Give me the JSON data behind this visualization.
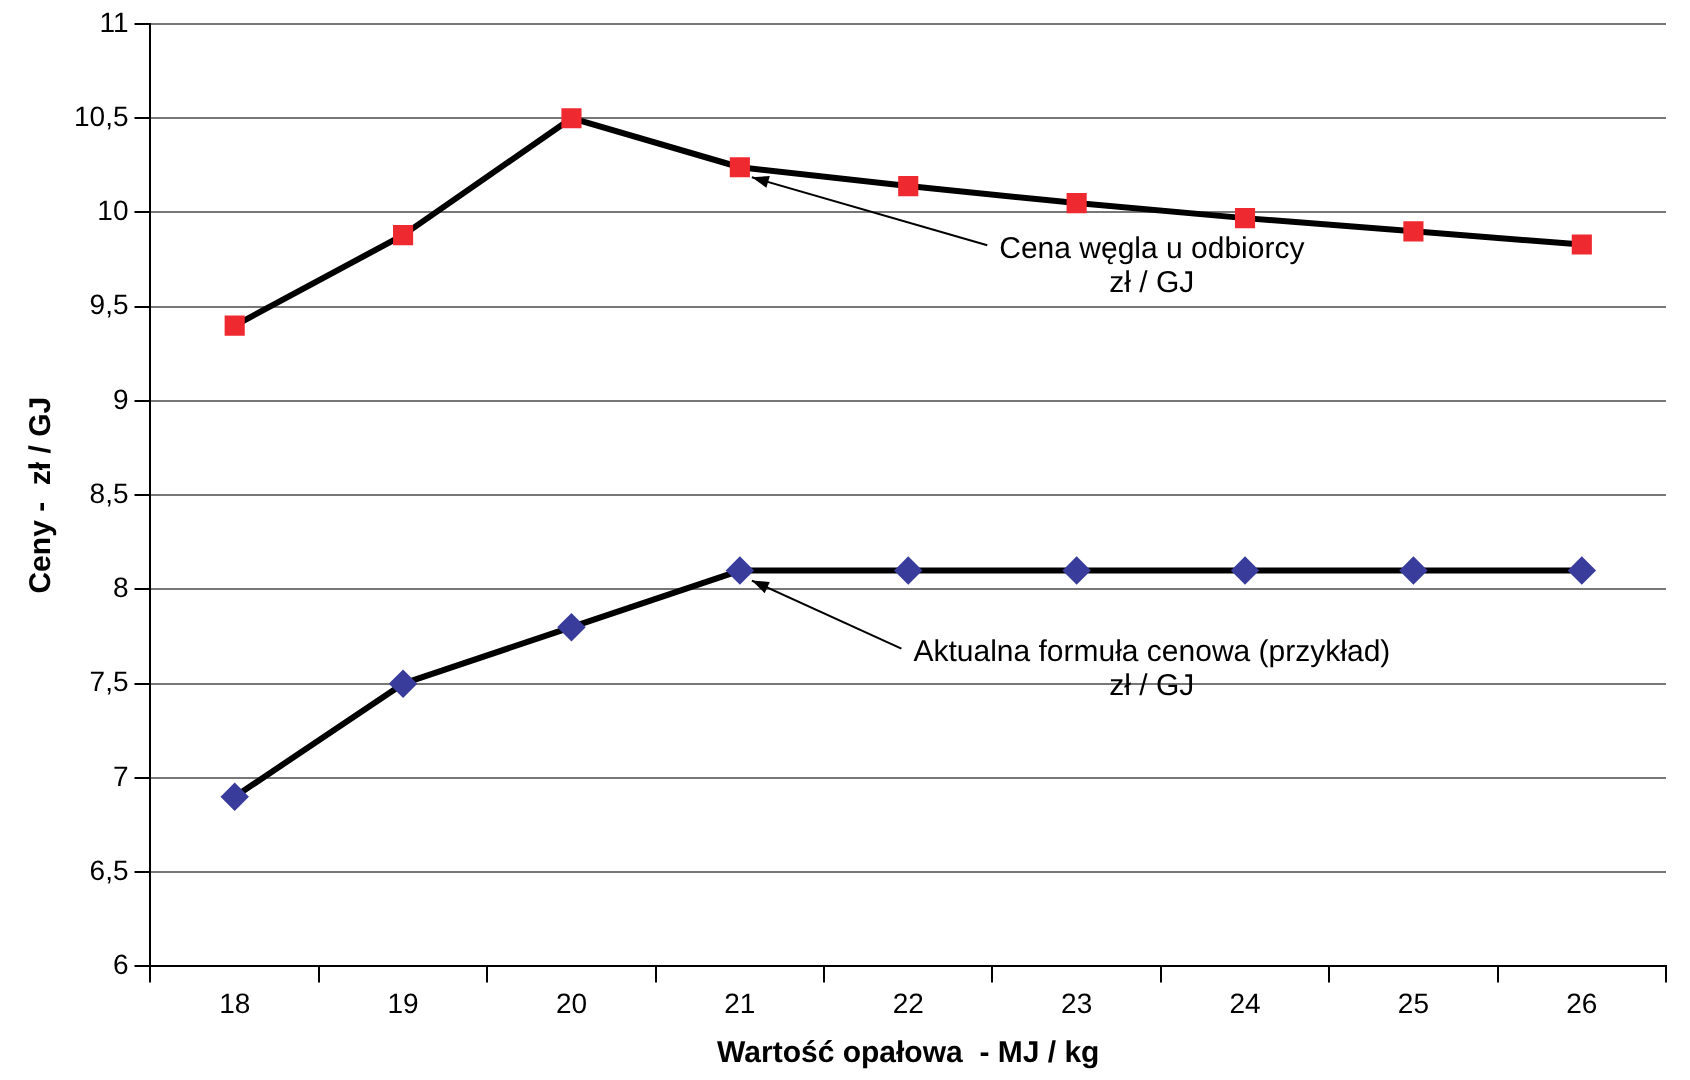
{
  "chart_data": {
    "type": "line",
    "xlabel": "Wartość opałowa  - MJ / kg",
    "ylabel": "Ceny -  zł / GJ",
    "categories": [
      "18",
      "19",
      "20",
      "21",
      "22",
      "23",
      "24",
      "25",
      "26"
    ],
    "series": [
      {
        "color": "#000000",
        "marker": "square",
        "colors": [
          "#ee2a30",
          "#ee2a30",
          "#ee2a30",
          "#ee2a30",
          "#ee2a30",
          "#ee2a30",
          "#ee2a30",
          "#ee2a30",
          "#ee2a30"
        ],
        "values": [
          9.4,
          9.88,
          10.5,
          10.24,
          10.14,
          10.05,
          9.97,
          9.9,
          9.83
        ]
      },
      {
        "color": "#000000",
        "marker": "diamond",
        "colors": [
          "#3a3c9c",
          "#3a3c9c",
          "#3a3c9c",
          "#3a3c9c",
          "#3a3c9c",
          "#3a3c9c",
          "#3a3c9c",
          "#3a3c9c",
          "#3a3c9c"
        ],
        "values": [
          6.9,
          7.5,
          7.8,
          8.1,
          8.1,
          8.1,
          8.1,
          8.1,
          8.1
        ]
      }
    ],
    "ylim": [
      6,
      11
    ],
    "yticks": [
      6,
      {
        "value": 6.5,
        "label": "6,5"
      },
      7,
      {
        "value": 7.5,
        "label": "7,5"
      },
      8,
      {
        "value": 8.5,
        "label": "8,5"
      },
      9,
      {
        "value": 9.5,
        "label": "9,5"
      },
      10,
      {
        "value": 10.5,
        "label": "10,5"
      },
      11
    ],
    "grid": "y",
    "legend": false,
    "line_style": "solid",
    "annotations": [
      {
        "text": "Cena węgla u odbiorcy\nzł / GJ",
        "x": "21",
        "y": 10.24
      },
      {
        "text": "Aktualna formuła cenowa (przykład)\nzł / GJ",
        "x": "21",
        "y": 8.1
      }
    ]
  }
}
